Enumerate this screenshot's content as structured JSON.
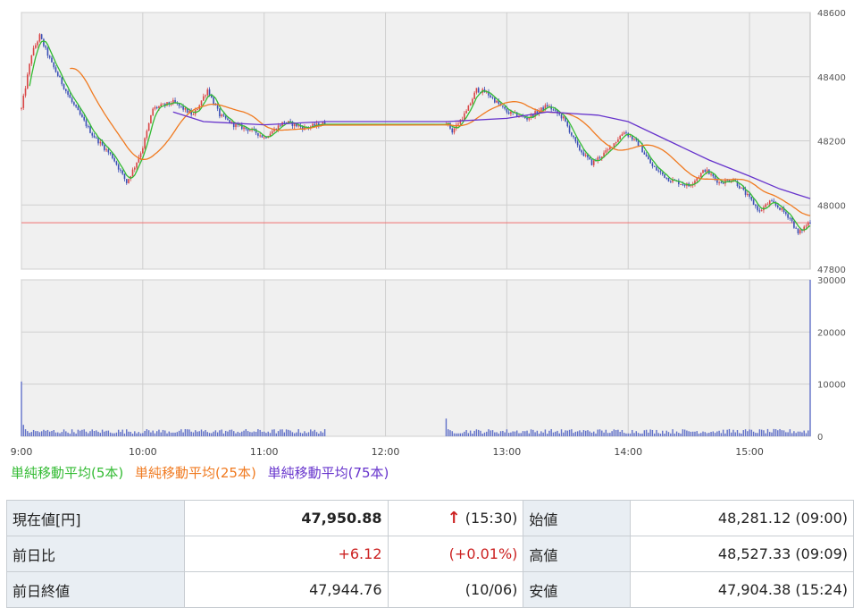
{
  "chart_data": [
    {
      "type": "candlestick",
      "y_ticks": [
        "48600",
        "48400",
        "48200",
        "48000",
        "47800"
      ],
      "ylim": [
        47800,
        48600
      ],
      "x_ticks": [
        "9:00",
        "10:00",
        "11:00",
        "12:00",
        "13:00",
        "14:00",
        "15:00"
      ],
      "reference_line": 47944.76,
      "grid": true,
      "colors": {
        "up": "#d94545",
        "down": "#3a4fb5",
        "ma5": "#33bb33",
        "ma25": "#f07a20",
        "ma75": "#6633cc",
        "ref": "#f07070"
      },
      "price_path": [
        [
          "9:00",
          48300
        ],
        [
          "9:05",
          48470
        ],
        [
          "9:09",
          48527
        ],
        [
          "9:15",
          48440
        ],
        [
          "9:25",
          48320
        ],
        [
          "9:35",
          48220
        ],
        [
          "9:45",
          48150
        ],
        [
          "9:52",
          48070
        ],
        [
          "9:56",
          48120
        ],
        [
          "10:00",
          48180
        ],
        [
          "10:05",
          48300
        ],
        [
          "10:15",
          48320
        ],
        [
          "10:25",
          48280
        ],
        [
          "10:32",
          48360
        ],
        [
          "10:38",
          48280
        ],
        [
          "10:45",
          48250
        ],
        [
          "10:55",
          48230
        ],
        [
          "11:00",
          48210
        ],
        [
          "11:10",
          48260
        ],
        [
          "11:20",
          48240
        ],
        [
          "11:30",
          48255
        ],
        [
          "12:30",
          48260
        ],
        [
          "12:33",
          48230
        ],
        [
          "12:40",
          48290
        ],
        [
          "12:45",
          48360
        ],
        [
          "12:50",
          48350
        ],
        [
          "13:00",
          48290
        ],
        [
          "13:10",
          48270
        ],
        [
          "13:20",
          48310
        ],
        [
          "13:28",
          48270
        ],
        [
          "13:35",
          48180
        ],
        [
          "13:42",
          48130
        ],
        [
          "13:50",
          48170
        ],
        [
          "13:58",
          48230
        ],
        [
          "14:05",
          48190
        ],
        [
          "14:12",
          48120
        ],
        [
          "14:20",
          48080
        ],
        [
          "14:30",
          48060
        ],
        [
          "14:38",
          48110
        ],
        [
          "14:45",
          48070
        ],
        [
          "14:52",
          48080
        ],
        [
          "15:00",
          48020
        ],
        [
          "15:05",
          47980
        ],
        [
          "15:10",
          48010
        ],
        [
          "15:15",
          47990
        ],
        [
          "15:20",
          47960
        ],
        [
          "15:24",
          47910
        ],
        [
          "15:30",
          47950
        ]
      ],
      "ma75_path": [
        [
          "10:15",
          48290
        ],
        [
          "10:30",
          48260
        ],
        [
          "11:00",
          48250
        ],
        [
          "11:30",
          48260
        ],
        [
          "12:30",
          48260
        ],
        [
          "13:00",
          48270
        ],
        [
          "13:20",
          48290
        ],
        [
          "13:45",
          48280
        ],
        [
          "14:00",
          48260
        ],
        [
          "14:20",
          48200
        ],
        [
          "14:40",
          48140
        ],
        [
          "15:00",
          48090
        ],
        [
          "15:15",
          48050
        ],
        [
          "15:30",
          48020
        ]
      ]
    },
    {
      "type": "bar",
      "y_ticks": [
        "30000",
        "20000",
        "10000",
        "0"
      ],
      "ylim": [
        0,
        30000
      ],
      "x_ticks": [
        "9:00",
        "10:00",
        "11:00",
        "12:00",
        "13:00",
        "14:00",
        "15:00"
      ],
      "spikes": [
        [
          "9:00",
          10500
        ],
        [
          "12:30",
          3400
        ],
        [
          "15:30",
          30000
        ]
      ],
      "baseline_volume": 1000,
      "color": "#6070c8"
    }
  ],
  "legend": [
    {
      "label": "単純移動平均(5本)",
      "color": "#33bb33"
    },
    {
      "label": "単純移動平均(25本)",
      "color": "#f07a20"
    },
    {
      "label": "単純移動平均(75本)",
      "color": "#6633cc"
    }
  ],
  "stats": {
    "current_label": "現在値[円]",
    "current_value": "47,950.88",
    "current_arrow": "↑",
    "current_time": "(15:30)",
    "open_label": "始値",
    "open_value": "48,281.12 (09:00)",
    "change_label": "前日比",
    "change_value": "+6.12",
    "change_pct": "(+0.01%)",
    "high_label": "高値",
    "high_value": "48,527.33 (09:09)",
    "prev_close_label": "前日終値",
    "prev_close_value": "47,944.76",
    "prev_close_date": "(10/06)",
    "low_label": "安値",
    "low_value": "47,904.38 (15:24)"
  }
}
